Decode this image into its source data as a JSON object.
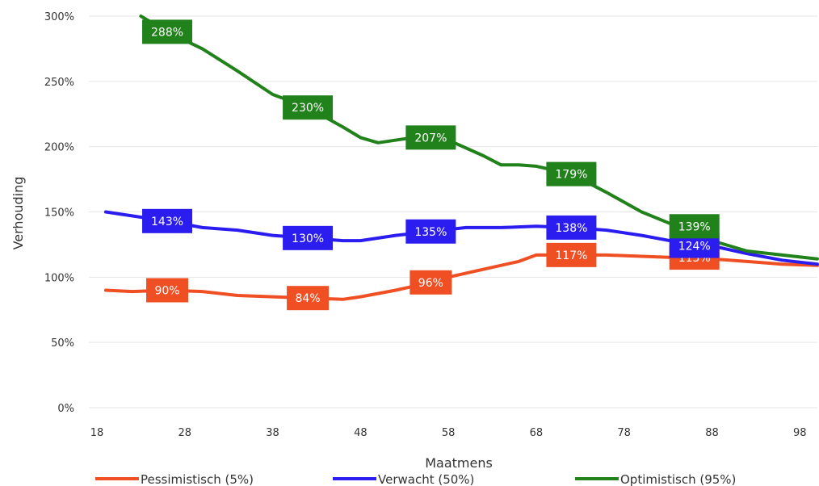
{
  "chart_data": {
    "type": "line",
    "xlabel": "Maatmens",
    "ylabel": "Verhouding",
    "xlim": [
      18,
      100
    ],
    "ylim": [
      0,
      300
    ],
    "x_ticks": [
      18,
      28,
      38,
      48,
      58,
      68,
      78,
      88,
      98
    ],
    "x_tick_labels": [
      "18",
      "28",
      "38",
      "48",
      "58",
      "68",
      "78",
      "88",
      "98"
    ],
    "y_ticks": [
      0,
      50,
      100,
      150,
      200,
      250,
      300
    ],
    "y_tick_labels": [
      "0%",
      "50%",
      "100%",
      "150%",
      "200%",
      "250%",
      "300%"
    ],
    "grid": "horizontal",
    "legend_position": "bottom",
    "series": [
      {
        "name": "Pessimistisch (5%)",
        "color": "#f04e23",
        "x": [
          19,
          22,
          26,
          30,
          34,
          38,
          42,
          46,
          48,
          52,
          56,
          58,
          62,
          66,
          68,
          72,
          76,
          80,
          84,
          88,
          92,
          96,
          100
        ],
        "values": [
          90,
          89,
          90,
          89,
          86,
          85,
          84,
          83,
          85,
          90,
          96,
          100,
          106,
          112,
          117,
          117,
          117,
          116,
          115,
          114,
          112,
          110,
          109
        ],
        "point_labels": [
          {
            "x": 26,
            "y": 90,
            "text": "90%"
          },
          {
            "x": 42,
            "y": 84,
            "text": "84%"
          },
          {
            "x": 56,
            "y": 96,
            "text": "96%"
          },
          {
            "x": 72,
            "y": 117,
            "text": "117%"
          },
          {
            "x": 86,
            "y": 115,
            "text": "115%"
          }
        ]
      },
      {
        "name": "Verwacht (50%)",
        "color": "#2b1df0",
        "x": [
          19,
          22,
          26,
          30,
          34,
          38,
          42,
          46,
          48,
          52,
          56,
          60,
          64,
          68,
          72,
          76,
          80,
          84,
          88,
          92,
          96,
          100
        ],
        "values": [
          150,
          147,
          143,
          138,
          136,
          132,
          130,
          128,
          128,
          132,
          135,
          138,
          138,
          139,
          138,
          136,
          132,
          127,
          124,
          118,
          113,
          110
        ],
        "point_labels": [
          {
            "x": 26,
            "y": 143,
            "text": "143%"
          },
          {
            "x": 42,
            "y": 130,
            "text": "130%"
          },
          {
            "x": 56,
            "y": 135,
            "text": "135%"
          },
          {
            "x": 72,
            "y": 138,
            "text": "138%"
          },
          {
            "x": 86,
            "y": 124,
            "text": "124%"
          }
        ]
      },
      {
        "name": "Optimistisch (95%)",
        "color": "#21811b",
        "x": [
          23,
          26,
          30,
          34,
          38,
          42,
          46,
          48,
          50,
          54,
          58,
          62,
          64,
          66,
          68,
          72,
          76,
          80,
          84,
          88,
          92,
          96,
          100
        ],
        "values": [
          300,
          288,
          275,
          258,
          240,
          230,
          215,
          207,
          203,
          207,
          205,
          193,
          186,
          186,
          185,
          179,
          165,
          150,
          139,
          128,
          120,
          117,
          114
        ],
        "point_labels": [
          {
            "x": 26,
            "y": 288,
            "text": "288%"
          },
          {
            "x": 42,
            "y": 230,
            "text": "230%"
          },
          {
            "x": 56,
            "y": 207,
            "text": "207%"
          },
          {
            "x": 72,
            "y": 179,
            "text": "179%"
          },
          {
            "x": 86,
            "y": 139,
            "text": "139%"
          }
        ]
      }
    ]
  }
}
